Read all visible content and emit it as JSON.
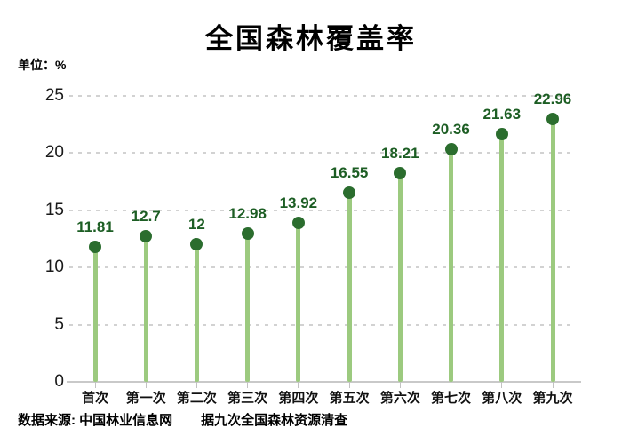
{
  "page": {
    "background": "#ffffff"
  },
  "chart_data": {
    "type": "bar",
    "variant": "lollipop",
    "title": "全国森林覆盖率",
    "unit_label": "单位：%",
    "categories": [
      "首次",
      "第一次",
      "第二次",
      "第三次",
      "第四次",
      "第五次",
      "第六次",
      "第七次",
      "第八次",
      "第九次"
    ],
    "values": [
      11.81,
      12.7,
      12,
      12.98,
      13.92,
      16.55,
      18.21,
      20.36,
      21.63,
      22.96
    ],
    "value_labels": [
      "11.81",
      "12.7",
      "12",
      "12.98",
      "13.92",
      "16.55",
      "18.21",
      "20.36",
      "21.63",
      "22.96"
    ],
    "xlabel": "",
    "ylabel": "",
    "ylim": [
      0,
      25
    ],
    "yticks": [
      0,
      5,
      10,
      15,
      20,
      25
    ],
    "grid": "horizontal-dotted",
    "legend": "none",
    "colors": {
      "stem": "#9cca7f",
      "dot": "#2b6d2e",
      "value_label": "#1d5e24",
      "axis_text": "#1a1a1a",
      "gridline": "#d2d2d2",
      "axis_line": "#c9c9c9",
      "title": "#000000"
    }
  },
  "footer": {
    "source": "数据来源: 中国林业信息网",
    "note": "据九次全国森林资源清查"
  }
}
